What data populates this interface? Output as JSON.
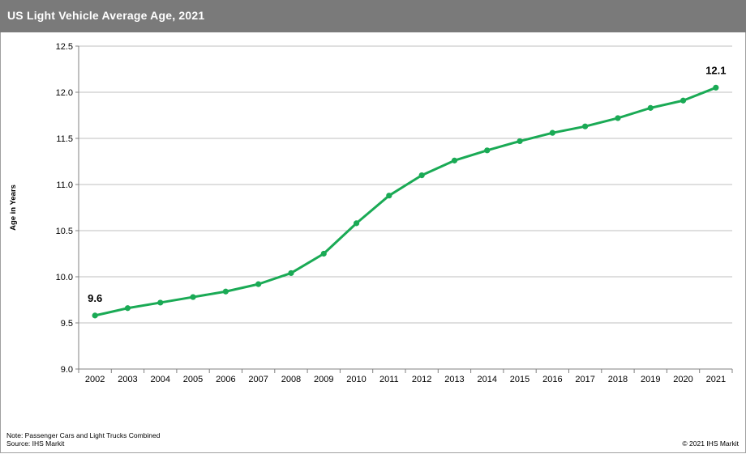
{
  "header": {
    "title": "US Light Vehicle Average Age, 2021"
  },
  "colors": {
    "title_bar": "#7a7a7a",
    "series": "#1aaa55",
    "grid": "#bfbfbf"
  },
  "chart_data": {
    "type": "line",
    "title": "US Light Vehicle Average Age, 2021",
    "xlabel": "",
    "ylabel": "Age in Years",
    "ylim": [
      9.0,
      12.5
    ],
    "yticks": [
      "9.0",
      "9.5",
      "10.0",
      "10.5",
      "11.0",
      "11.5",
      "12.0",
      "12.5"
    ],
    "grid": true,
    "categories": [
      "2002",
      "2003",
      "2004",
      "2005",
      "2006",
      "2007",
      "2008",
      "2009",
      "2010",
      "2011",
      "2012",
      "2013",
      "2014",
      "2015",
      "2016",
      "2017",
      "2018",
      "2019",
      "2020",
      "2021"
    ],
    "series": [
      {
        "values": [
          9.58,
          9.66,
          9.72,
          9.78,
          9.84,
          9.92,
          10.04,
          10.25,
          10.58,
          10.88,
          11.1,
          11.26,
          11.37,
          11.47,
          11.56,
          11.63,
          11.72,
          11.83,
          11.91,
          12.05
        ]
      }
    ],
    "annotations": [
      {
        "category": "2002",
        "label": "9.6"
      },
      {
        "category": "2021",
        "label": "12.1"
      }
    ]
  },
  "footer": {
    "note": "Note: Passenger Cars and Light Trucks Combined",
    "source": "Source: IHS Markit",
    "copyright": "© 2021 IHS Markit"
  }
}
